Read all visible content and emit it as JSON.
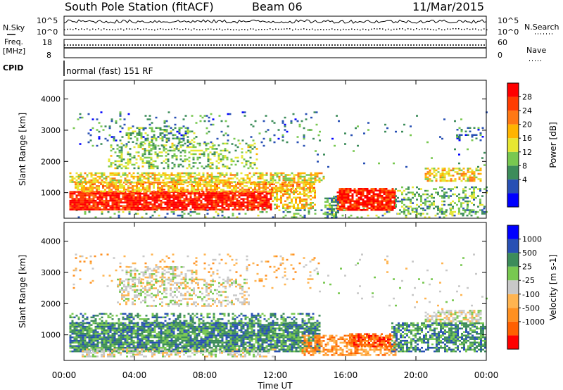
{
  "header": {
    "title": "South Pole Station (fitACF)",
    "beam": "Beam 06",
    "date": "11/Mar/2015"
  },
  "top_panels": {
    "nsky_label": "N.Sky",
    "nsearch_label": "N.Search",
    "noise_ticks": [
      "10^5",
      "10^0"
    ],
    "freq_label": "Freq.",
    "freq_unit": "[MHz]",
    "freq_ticks": [
      "18",
      "8"
    ],
    "nave_label": "Nave",
    "nave_ticks": [
      "60",
      "0"
    ],
    "cpid_label": "CPID",
    "cpid_text": "normal (fast) 151 RF"
  },
  "chart_data": [
    {
      "type": "heatmap",
      "title": "",
      "xlabel": "Time UT",
      "ylabel": "Slant Range [km]",
      "x_ticks": [
        "00:00",
        "04:00",
        "08:00",
        "12:00",
        "16:00",
        "20:00",
        "00:00"
      ],
      "xlim_hours": [
        0,
        24
      ],
      "y_ticks": [
        1000,
        2000,
        3000,
        4000
      ],
      "ylim_km": [
        180,
        4600
      ],
      "colorbar": {
        "label": "Power [dB]",
        "ticks": [
          "28",
          "24",
          "20",
          "16",
          "12",
          "8",
          "4"
        ],
        "range": [
          0,
          30
        ],
        "colors": [
          "#0000ff",
          "#2850b4",
          "#3c8c5a",
          "#78c850",
          "#e6e632",
          "#ffb400",
          "#ff7814",
          "#ff3c00",
          "#ff0000"
        ]
      },
      "bands": [
        {
          "t": [
            0.3,
            24
          ],
          "r": [
            200,
            520
          ],
          "level": 10,
          "density": 0.18
        },
        {
          "t": [
            0.3,
            11.8
          ],
          "r": [
            450,
            1050
          ],
          "level": 27,
          "density": 0.88
        },
        {
          "t": [
            11.8,
            14.3
          ],
          "r": [
            480,
            1150
          ],
          "level": 17,
          "density": 0.55
        },
        {
          "t": [
            0.6,
            14.2
          ],
          "r": [
            1050,
            1350
          ],
          "level": 19,
          "density": 0.72
        },
        {
          "t": [
            0.3,
            14.8
          ],
          "r": [
            1350,
            1650
          ],
          "level": 16,
          "density": 0.62
        },
        {
          "t": [
            2.5,
            11.0
          ],
          "r": [
            1800,
            2600
          ],
          "level": 12,
          "density": 0.35
        },
        {
          "t": [
            3.5,
            7.5
          ],
          "r": [
            2600,
            3100
          ],
          "level": 11,
          "density": 0.35
        },
        {
          "t": [
            0.5,
            14.5
          ],
          "r": [
            2500,
            3600
          ],
          "level": 7,
          "density": 0.08
        },
        {
          "t": [
            15.5,
            18.8
          ],
          "r": [
            450,
            1150
          ],
          "level": 27,
          "density": 0.85
        },
        {
          "t": [
            14.8,
            15.6
          ],
          "r": [
            200,
            900
          ],
          "level": 9,
          "density": 0.6
        },
        {
          "t": [
            18.8,
            24
          ],
          "r": [
            350,
            1200
          ],
          "level": 11,
          "density": 0.35
        },
        {
          "t": [
            20.5,
            23.7
          ],
          "r": [
            1400,
            1800
          ],
          "level": 17,
          "density": 0.6
        },
        {
          "t": [
            22.3,
            23.8
          ],
          "r": [
            2700,
            3100
          ],
          "level": 6,
          "density": 0.35
        },
        {
          "t": [
            14.0,
            24
          ],
          "r": [
            1800,
            3600
          ],
          "level": 8,
          "density": 0.02
        }
      ]
    },
    {
      "type": "heatmap",
      "title": "",
      "xlabel": "Time UT",
      "ylabel": "Slant Range [km]",
      "x_ticks": [
        "00:00",
        "04:00",
        "08:00",
        "12:00",
        "16:00",
        "20:00",
        "00:00"
      ],
      "xlim_hours": [
        0,
        24
      ],
      "y_ticks": [
        1000,
        2000,
        3000,
        4000
      ],
      "ylim_km": [
        180,
        4600
      ],
      "colorbar": {
        "label": "Velocity [m s-1]",
        "ticks": [
          "1000",
          "500",
          "25",
          "-25",
          "-100",
          "-500",
          "-1000"
        ],
        "colors": [
          "#ff0000",
          "#ff6000",
          "#ff9020",
          "#ffb450",
          "#c8c8c8",
          "#78c850",
          "#3c8c5a",
          "#2850b4",
          "#0000ff"
        ]
      },
      "bands": [
        {
          "t": [
            0.3,
            14.5
          ],
          "r": [
            450,
            1400
          ],
          "level": 6,
          "density": 0.85
        },
        {
          "t": [
            0.3,
            14.5
          ],
          "r": [
            1400,
            1700
          ],
          "level": 6,
          "density": 0.45
        },
        {
          "t": [
            1.0,
            12.0
          ],
          "r": [
            300,
            560
          ],
          "level": 4,
          "density": 0.45
        },
        {
          "t": [
            3.0,
            10.5
          ],
          "r": [
            1900,
            2800
          ],
          "level": 4,
          "density": 0.35
        },
        {
          "t": [
            3.5,
            7.5
          ],
          "r": [
            2800,
            3200
          ],
          "level": 4,
          "density": 0.4
        },
        {
          "t": [
            13.5,
            18.8
          ],
          "r": [
            350,
            1000
          ],
          "level": 2,
          "density": 0.6
        },
        {
          "t": [
            16.2,
            18.6
          ],
          "r": [
            650,
            1050
          ],
          "level": 1,
          "density": 0.75
        },
        {
          "t": [
            18.6,
            24
          ],
          "r": [
            450,
            1400
          ],
          "level": 6,
          "density": 0.65
        },
        {
          "t": [
            20.5,
            23.7
          ],
          "r": [
            1450,
            1800
          ],
          "level": 4,
          "density": 0.65
        },
        {
          "t": [
            0.5,
            14.5
          ],
          "r": [
            2500,
            3600
          ],
          "level": 3,
          "density": 0.08
        },
        {
          "t": [
            14.0,
            24
          ],
          "r": [
            1800,
            3600
          ],
          "level": 4,
          "density": 0.02
        }
      ]
    }
  ]
}
